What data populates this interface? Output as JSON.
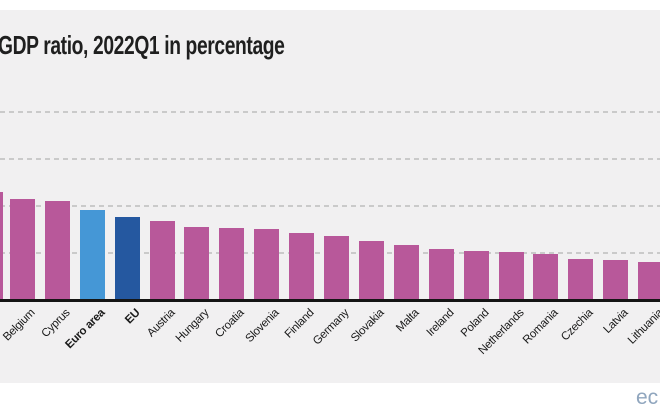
{
  "title": "GDP ratio, 2022Q1 in percentage",
  "footer": {
    "partial_link_text": "ec"
  },
  "colors": {
    "page_background": "#ffffff",
    "plot_background": "#f1f0f1",
    "bar_country": "#b8589a",
    "bar_euro_area": "#4597d6",
    "bar_eu": "#2558a0",
    "gridline": "#cacaca",
    "axis": "#151515",
    "title_text": "#1f1f1f",
    "label_text": "#1a1a1a",
    "footer_text": "#90a6be"
  },
  "chart_data": {
    "type": "bar",
    "title": "GDP ratio, 2022Q1 in percentage",
    "unit": "percent of GDP",
    "ylim": [
      0,
      200
    ],
    "gridlines": [
      50,
      100,
      150,
      200
    ],
    "grid_style": "dashed-horizontal",
    "legend": "none",
    "bars": [
      {
        "label": "",
        "value": 114.4,
        "group": "country",
        "clipped_left": true
      },
      {
        "label": "Belgium",
        "value": 107.9,
        "group": "country"
      },
      {
        "label": "Cyprus",
        "value": 104.9,
        "group": "country"
      },
      {
        "label": "Euro area",
        "value": 95.6,
        "group": "euro_area",
        "bold": true
      },
      {
        "label": "EU",
        "value": 87.8,
        "group": "eu",
        "bold": true
      },
      {
        "label": "Austria",
        "value": 84.5,
        "group": "country"
      },
      {
        "label": "Hungary",
        "value": 77.5,
        "group": "country"
      },
      {
        "label": "Croatia",
        "value": 77.0,
        "group": "country"
      },
      {
        "label": "Slovenia",
        "value": 76.0,
        "group": "country"
      },
      {
        "label": "Finland",
        "value": 71.5,
        "group": "country"
      },
      {
        "label": "Germany",
        "value": 68.0,
        "group": "country"
      },
      {
        "label": "Slovakia",
        "value": 63.0,
        "group": "country"
      },
      {
        "label": "Malta",
        "value": 58.0,
        "group": "country"
      },
      {
        "label": "Ireland",
        "value": 54.5,
        "group": "country"
      },
      {
        "label": "Poland",
        "value": 52.5,
        "group": "country"
      },
      {
        "label": "Netherlands",
        "value": 51.0,
        "group": "country"
      },
      {
        "label": "Romania",
        "value": 48.5,
        "group": "country"
      },
      {
        "label": "Czechia",
        "value": 43.5,
        "group": "country"
      },
      {
        "label": "Latvia",
        "value": 43.0,
        "group": "country"
      },
      {
        "label": "Lithuania",
        "value": 40.5,
        "group": "country"
      }
    ]
  }
}
